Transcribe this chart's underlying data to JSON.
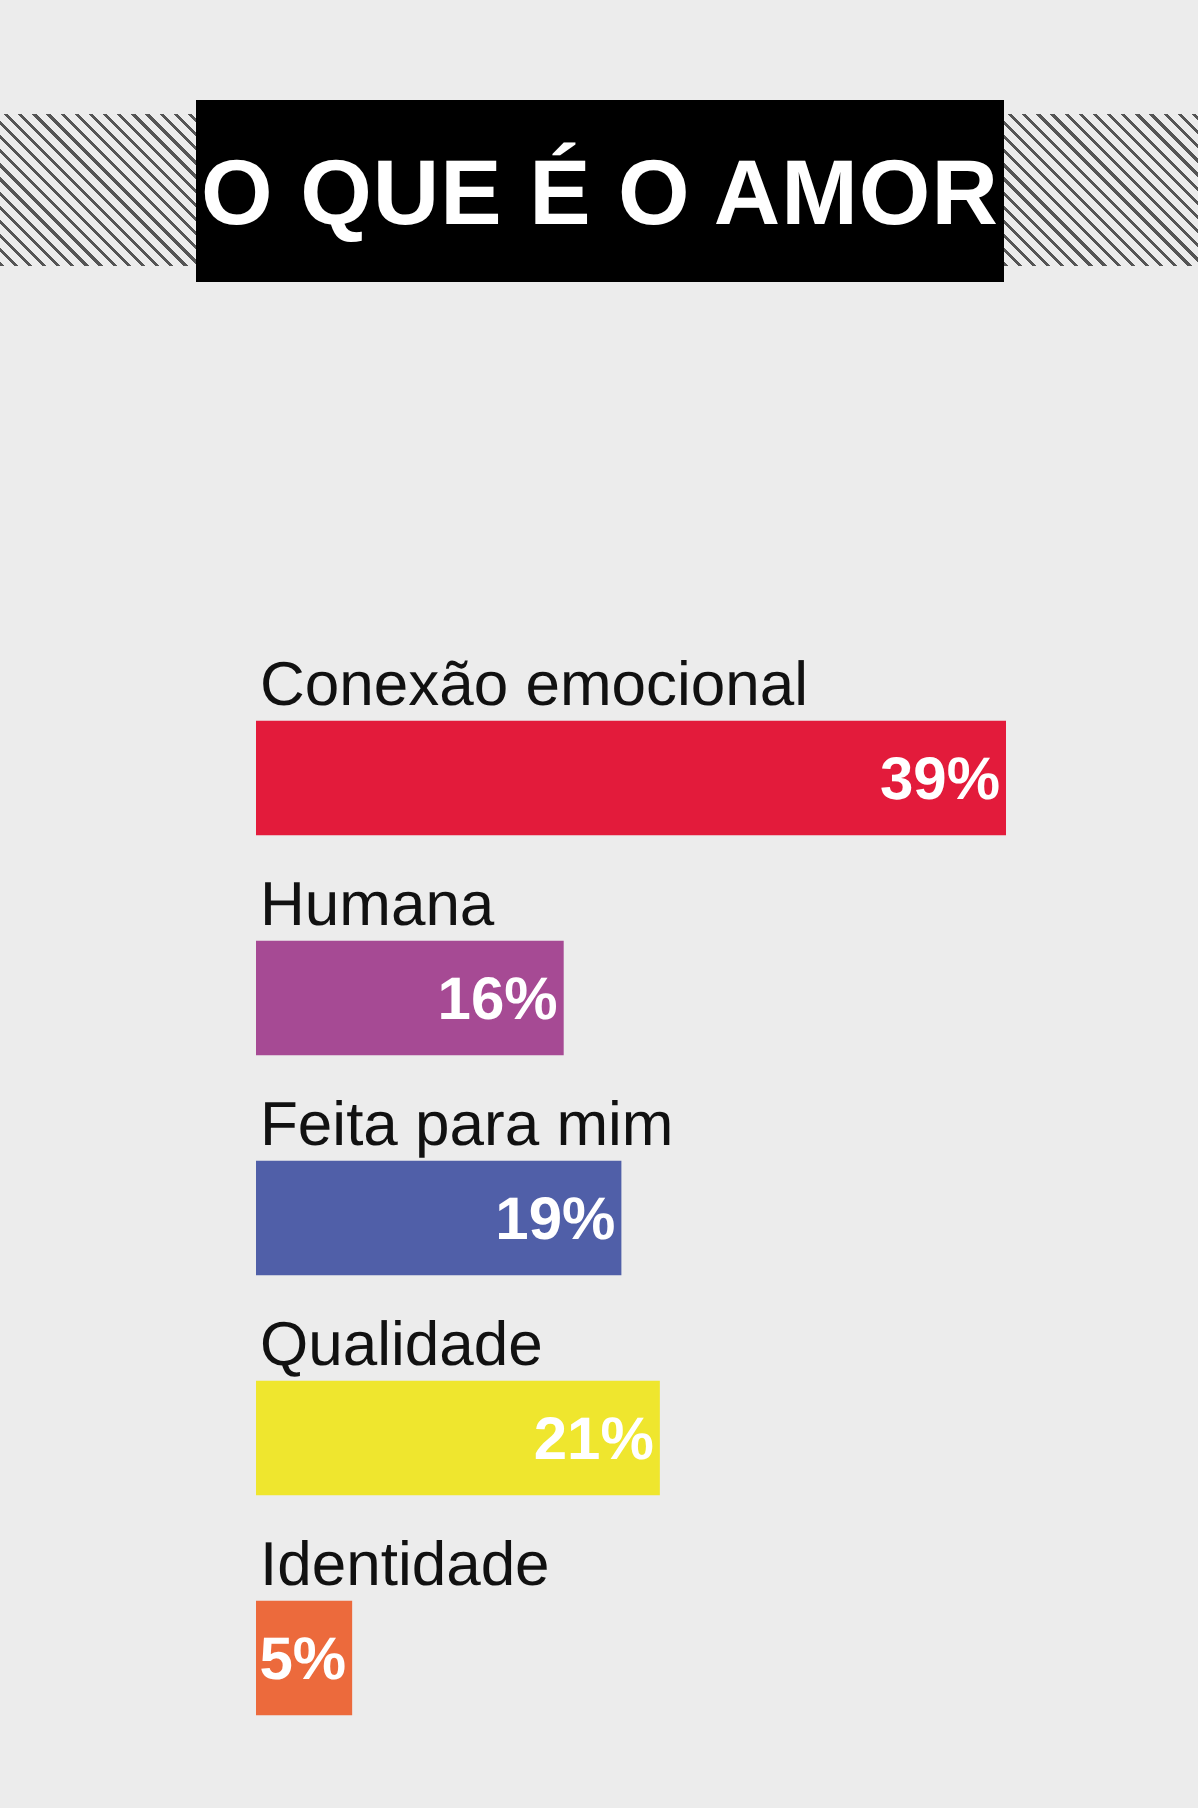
{
  "chart_data": {
    "type": "bar",
    "orientation": "horizontal",
    "title": "O QUE É O AMOR",
    "categories": [
      "Conexão emocional",
      "Humana",
      "Feita para mim",
      "Qualidade",
      "Identidade"
    ],
    "values": [
      39,
      16,
      19,
      21,
      5
    ],
    "colors": [
      "#e31b3b",
      "#a64a94",
      "#505fa8",
      "#efe62e",
      "#ec6a3c"
    ],
    "value_labels": [
      "39%",
      "16%",
      "19%",
      "21%",
      "5%"
    ]
  }
}
